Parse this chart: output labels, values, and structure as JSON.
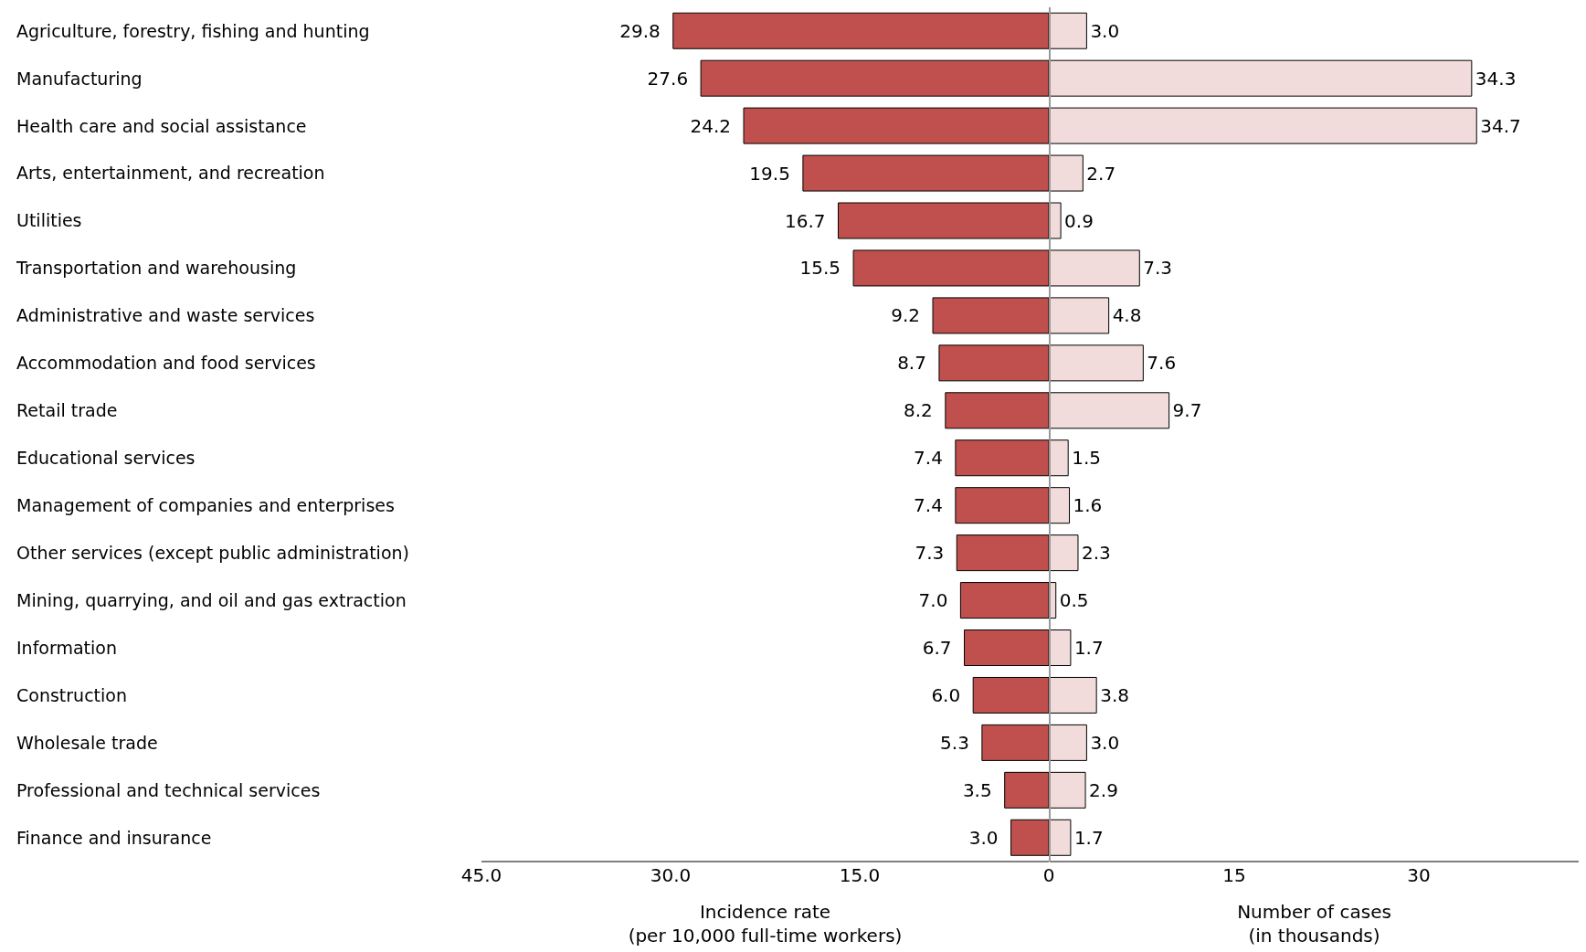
{
  "chart_data": [
    {
      "type": "bar",
      "orientation": "horizontal",
      "xlabel": "Incidence rate\n(per 10,000 full-time workers)",
      "categories": [
        "Agriculture, forestry, fishing and hunting",
        "Manufacturing",
        "Health care and social assistance",
        "Arts, entertainment, and recreation",
        "Utilities",
        "Transportation and warehousing",
        "Administrative and waste services",
        "Accommodation and food services",
        "Retail trade",
        "Educational services",
        "Management of companies and enterprises",
        "Other services (except public administration)",
        "Mining, quarrying, and oil and gas extraction",
        "Information",
        "Construction",
        "Wholesale trade",
        "Professional and technical services",
        "Finance and insurance"
      ],
      "values": [
        29.8,
        27.6,
        24.2,
        19.5,
        16.7,
        15.5,
        9.2,
        8.7,
        8.2,
        7.4,
        7.4,
        7.3,
        7.0,
        6.7,
        6.0,
        5.3,
        3.5,
        3.0
      ],
      "value_labels": [
        "29.8",
        "27.6",
        "24.2",
        "19.5",
        "16.7",
        "15.5",
        "9.2",
        "8.7",
        "8.2",
        "7.4",
        "7.4",
        "7.3",
        "7.0",
        "6.7",
        "6.0",
        "5.3",
        "3.5",
        "3.0"
      ],
      "color": "#c0504d",
      "xlim": [
        45,
        0
      ],
      "xticks": [
        {
          "value": 45,
          "label": "45.0"
        },
        {
          "value": 30,
          "label": "30.0"
        },
        {
          "value": 15,
          "label": "15.0"
        },
        0
      ],
      "grid": false,
      "legend": false
    },
    {
      "type": "bar",
      "orientation": "horizontal",
      "xlabel": "Number of cases\n(in thousands)",
      "values": [
        3.0,
        34.3,
        34.7,
        2.7,
        0.9,
        7.3,
        4.8,
        7.6,
        9.7,
        1.5,
        1.6,
        2.3,
        0.5,
        1.7,
        3.8,
        3.0,
        2.9,
        1.7
      ],
      "value_labels": [
        "3.0",
        "34.3",
        "34.7",
        "2.7",
        "0.9",
        "7.3",
        "4.8",
        "7.6",
        "9.7",
        "1.5",
        "1.6",
        "2.3",
        "0.5",
        "1.7",
        "3.8",
        "3.0",
        "2.9",
        "1.7"
      ],
      "color": "#f2dcdb",
      "xlim": [
        0,
        43
      ],
      "xticks": [
        {
          "value": 0,
          "label": null
        },
        15,
        30
      ],
      "tick_labels": "x",
      "grid": false,
      "legend": false
    }
  ]
}
